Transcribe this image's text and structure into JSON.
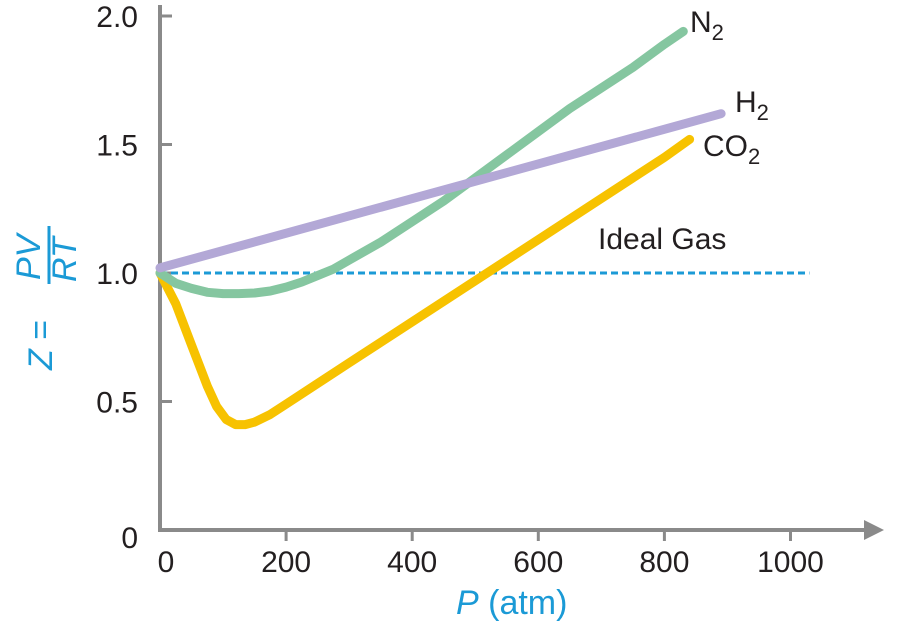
{
  "colors": {
    "axis": "#8a8a8a",
    "text": "#231f20",
    "accent": "#1b9ad6",
    "n2": "#85c6a0",
    "h2": "#b3a8d6",
    "co2": "#f7c200",
    "ideal": "#1b9ad6"
  },
  "chart_data": {
    "type": "line",
    "grid": false,
    "xlim": [
      0,
      1100
    ],
    "ylim": [
      0,
      2.0
    ],
    "x_ticks": [
      0,
      200,
      400,
      600,
      800,
      1000
    ],
    "x_tick_labels": [
      "0",
      "200",
      "400",
      "600",
      "800",
      "1000"
    ],
    "y_ticks": [
      0,
      0.5,
      1.0,
      1.5,
      2.0
    ],
    "y_tick_labels": [
      "0",
      "0.5",
      "1.0",
      "1.5",
      "2.0"
    ],
    "xlabel": {
      "var": "P",
      "unit": " (atm)"
    },
    "ylabel": {
      "lhs": "Z =",
      "num": "PV",
      "den": "RT"
    },
    "series": [
      {
        "id": "n2",
        "name": "N",
        "subscript": "2",
        "style": "solid",
        "x": [
          0,
          25,
          50,
          75,
          100,
          125,
          150,
          175,
          200,
          225,
          250,
          275,
          300,
          350,
          400,
          450,
          500,
          550,
          600,
          650,
          700,
          750,
          800,
          830
        ],
        "y": [
          1.0,
          0.96,
          0.94,
          0.925,
          0.92,
          0.92,
          0.922,
          0.93,
          0.945,
          0.965,
          0.99,
          1.015,
          1.05,
          1.12,
          1.2,
          1.28,
          1.37,
          1.46,
          1.55,
          1.64,
          1.72,
          1.8,
          1.89,
          1.94
        ]
      },
      {
        "id": "h2",
        "name": "H",
        "subscript": "2",
        "style": "solid",
        "x": [
          0,
          890
        ],
        "y": [
          1.02,
          1.62
        ]
      },
      {
        "id": "co2",
        "name": "CO",
        "subscript": "2",
        "style": "solid",
        "x": [
          0,
          25,
          50,
          75,
          90,
          105,
          120,
          135,
          150,
          175,
          200,
          300,
          400,
          500,
          600,
          700,
          800,
          840
        ],
        "y": [
          1.0,
          0.88,
          0.72,
          0.56,
          0.48,
          0.43,
          0.41,
          0.41,
          0.42,
          0.45,
          0.49,
          0.65,
          0.81,
          0.97,
          1.13,
          1.29,
          1.45,
          1.52
        ]
      },
      {
        "id": "ideal",
        "name": "Ideal Gas",
        "subscript": "",
        "style": "dashed",
        "x": [
          0,
          1030
        ],
        "y": [
          1.0,
          1.0
        ]
      }
    ]
  }
}
